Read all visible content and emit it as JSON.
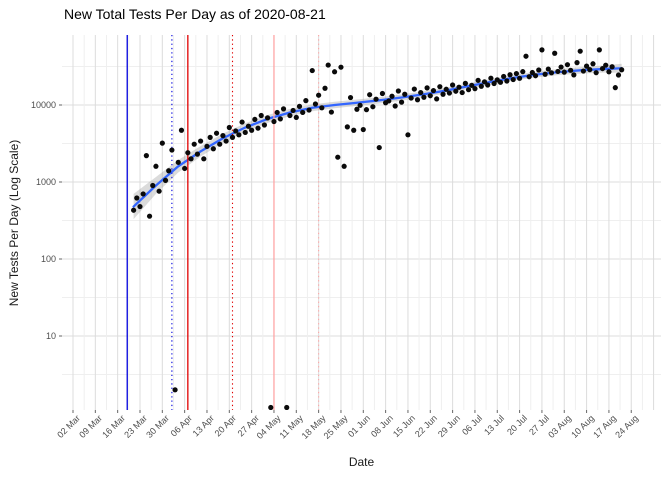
{
  "chart_data": {
    "type": "scatter",
    "title": "New Total Tests Per Day as of 2020-08-21",
    "xlabel": "Date",
    "ylabel": "New Tests Per Day (Log Scale)",
    "y_scale": "log10",
    "grid": "on",
    "legend": "none",
    "x_tick_labels": [
      "02 Mar",
      "09 Mar",
      "16 Mar",
      "23 Mar",
      "30 Mar",
      "06 Apr",
      "13 Apr",
      "20 Apr",
      "27 Apr",
      "04 May",
      "11 May",
      "18 May",
      "25 May",
      "01 Jun",
      "08 Jun",
      "15 Jun",
      "22 Jun",
      "29 Jun",
      "06 Jul",
      "13 Jul",
      "20 Jul",
      "27 Jul",
      "03 Aug",
      "10 Aug",
      "17 Aug",
      "24 Aug"
    ],
    "x_tick_start_date": "2020-03-02",
    "x_tick_interval_days": 7,
    "y_tick_labels": [
      "10",
      "100",
      "1000",
      "10000"
    ],
    "y_tick_values": [
      10,
      100,
      1000,
      10000
    ],
    "colors": {
      "point": "#0a0a0a",
      "smooth_line": "#3366FF",
      "ribbon": "#999999",
      "grid_major": "#dcdcdc",
      "grid_minor": "#efefef",
      "tick_text": "#4d4d4d",
      "event_blue": "#0000dd",
      "event_red": "#e00000",
      "event_pink": "#ffa6a6"
    },
    "event_lines": [
      {
        "date": "2020-03-19",
        "color": "#0000dd",
        "style": "solid"
      },
      {
        "date": "2020-04-02",
        "color": "#0000dd",
        "style": "dotted"
      },
      {
        "date": "2020-04-07",
        "color": "#e00000",
        "style": "solid"
      },
      {
        "date": "2020-04-21",
        "color": "#e00000",
        "style": "dotted"
      },
      {
        "date": "2020-05-04",
        "color": "#ffa6a6",
        "style": "solid"
      },
      {
        "date": "2020-05-18",
        "color": "#ffa6a6",
        "style": "dotted"
      }
    ],
    "smooth": {
      "dates": [
        "2020-03-21",
        "2020-03-28",
        "2020-04-04",
        "2020-04-11",
        "2020-04-18",
        "2020-04-25",
        "2020-05-02",
        "2020-05-09",
        "2020-05-16",
        "2020-05-23",
        "2020-05-30",
        "2020-06-06",
        "2020-06-13",
        "2020-06-20",
        "2020-06-27",
        "2020-07-04",
        "2020-07-11",
        "2020-07-18",
        "2020-07-25",
        "2020-08-01",
        "2020-08-08",
        "2020-08-15",
        "2020-08-21"
      ],
      "fit": [
        480,
        900,
        1600,
        2500,
        3700,
        5100,
        6600,
        8000,
        9200,
        10000,
        10700,
        11500,
        12500,
        13800,
        15400,
        17600,
        20000,
        22500,
        24800,
        26700,
        28200,
        29300,
        30000
      ],
      "lower": [
        330,
        700,
        1330,
        2140,
        3220,
        4490,
        5870,
        7180,
        8310,
        9070,
        9730,
        10470,
        11400,
        12600,
        14100,
        16150,
        18350,
        20650,
        22750,
        24400,
        25600,
        26300,
        26200
      ],
      "upper": [
        700,
        1160,
        1930,
        2920,
        4250,
        5790,
        7420,
        8910,
        10190,
        11030,
        11770,
        12630,
        13710,
        15110,
        16820,
        19180,
        21800,
        24520,
        27030,
        29220,
        31060,
        32640,
        34350
      ]
    },
    "points": {
      "start_date": "2020-03-21",
      "values": [
        430,
        620,
        480,
        700,
        2200,
        360,
        900,
        1600,
        760,
        3200,
        1050,
        1400,
        2600,
        2,
        1800,
        4700,
        1500,
        2400,
        2000,
        3100,
        2300,
        3400,
        2000,
        2900,
        3800,
        2700,
        4300,
        3100,
        4000,
        3400,
        5100,
        3800,
        4600,
        4100,
        6000,
        4400,
        5300,
        4700,
        6500,
        5000,
        7300,
        5500,
        6800,
        1,
        6100,
        8000,
        6600,
        8900,
        1,
        7300,
        8500,
        6900,
        9600,
        8000,
        11400,
        8600,
        28000,
        10300,
        13400,
        9200,
        16500,
        33000,
        8100,
        27000,
        2100,
        31000,
        1600,
        5200,
        12500,
        4700,
        8800,
        9900,
        4800,
        8700,
        13600,
        9500,
        11900,
        2800,
        14100,
        10700,
        11300,
        13000,
        9700,
        15200,
        10900,
        13800,
        4100,
        12300,
        16100,
        11700,
        14500,
        12600,
        16700,
        13200,
        15400,
        12000,
        17300,
        13800,
        16000,
        14300,
        18200,
        15100,
        17000,
        14500,
        19100,
        15800,
        18000,
        16300,
        20900,
        17500,
        20000,
        18200,
        22300,
        19000,
        21200,
        19700,
        23500,
        20500,
        24700,
        21400,
        25600,
        22200,
        27100,
        43000,
        23300,
        26400,
        24000,
        28500,
        52000,
        25100,
        29300,
        26200,
        47000,
        27300,
        31100,
        26700,
        33400,
        28200,
        24600,
        35500,
        50000,
        27600,
        32000,
        28800,
        34300,
        26300,
        52000,
        29700,
        32900,
        27000,
        31400,
        16800,
        24500,
        28700
      ]
    }
  }
}
